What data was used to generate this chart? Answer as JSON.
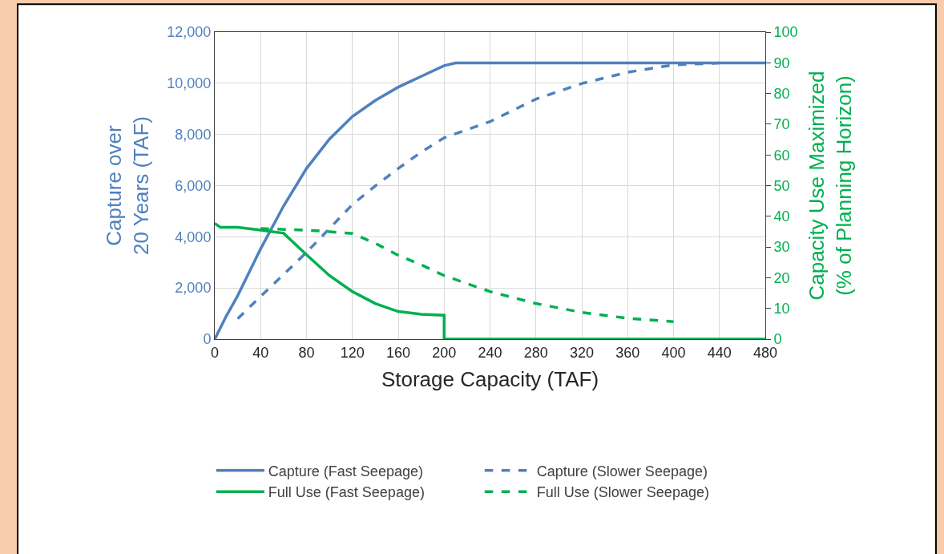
{
  "chart_data": {
    "type": "line",
    "xlabel": "Storage Capacity (TAF)",
    "ylabel": "Capture over\n20 Years (TAF)",
    "y2label": "Capacity Use Maximized\n(% of Planning Horizon)",
    "xlim": [
      0,
      480
    ],
    "xticks": [
      0,
      40,
      80,
      120,
      160,
      200,
      240,
      280,
      320,
      360,
      400,
      440,
      480
    ],
    "ylim": [
      0,
      12000
    ],
    "yticks": [
      {
        "value": 0,
        "label": "0"
      },
      {
        "value": 2000,
        "label": "2,000"
      },
      {
        "value": 4000,
        "label": "4,000"
      },
      {
        "value": 6000,
        "label": "6,000"
      },
      {
        "value": 8000,
        "label": "8,000"
      },
      {
        "value": 10000,
        "label": "10,000"
      },
      {
        "value": 12000,
        "label": "12,000"
      }
    ],
    "y2lim": [
      0,
      100
    ],
    "y2ticks": [
      0,
      10,
      20,
      30,
      40,
      50,
      60,
      70,
      80,
      90,
      100
    ],
    "grid": true,
    "legend": "bottom",
    "marker": "none",
    "series": [
      {
        "name": "Capture (Fast Seepage)",
        "color": "#4f81bd",
        "line_style": "solid",
        "x": [
          0,
          10,
          20,
          40,
          60,
          80,
          100,
          120,
          140,
          160,
          180,
          200,
          210,
          480
        ],
        "values": [
          0,
          900,
          1700,
          3530,
          5200,
          6670,
          7820,
          8700,
          9330,
          9850,
          10270,
          10690,
          10790,
          10790
        ]
      },
      {
        "name": "Capture (Slower Seepage)",
        "color": "#4f81bd",
        "line_style": "dashed",
        "x": [
          20,
          40,
          60,
          80,
          100,
          120,
          140,
          160,
          180,
          200,
          240,
          280,
          320,
          360,
          400,
          440
        ],
        "values": [
          800,
          1670,
          2530,
          3390,
          4320,
          5260,
          5990,
          6670,
          7310,
          7870,
          8500,
          9380,
          9990,
          10430,
          10720,
          10790
        ]
      },
      {
        "name": "Full Use (Fast Seepage)",
        "color": "#00b050",
        "line_style": "solid",
        "axis": "y2",
        "x": [
          0,
          5,
          20,
          40,
          60,
          80,
          100,
          120,
          140,
          160,
          180,
          200,
          200,
          480
        ],
        "values": [
          37.7,
          36.4,
          36.4,
          35.5,
          34.5,
          27.5,
          20.7,
          15.5,
          11.6,
          9.0,
          8.1,
          7.8,
          0,
          0
        ]
      },
      {
        "name": "Full Use (Slower Seepage)",
        "color": "#00b050",
        "line_style": "dashed",
        "axis": "y2",
        "x": [
          40,
          80,
          100,
          120,
          140,
          160,
          180,
          200,
          240,
          280,
          320,
          360,
          400
        ],
        "values": [
          36.0,
          35.5,
          35.0,
          34.4,
          31.2,
          27.3,
          24.2,
          20.7,
          15.5,
          11.6,
          8.7,
          6.8,
          5.7
        ]
      }
    ]
  }
}
